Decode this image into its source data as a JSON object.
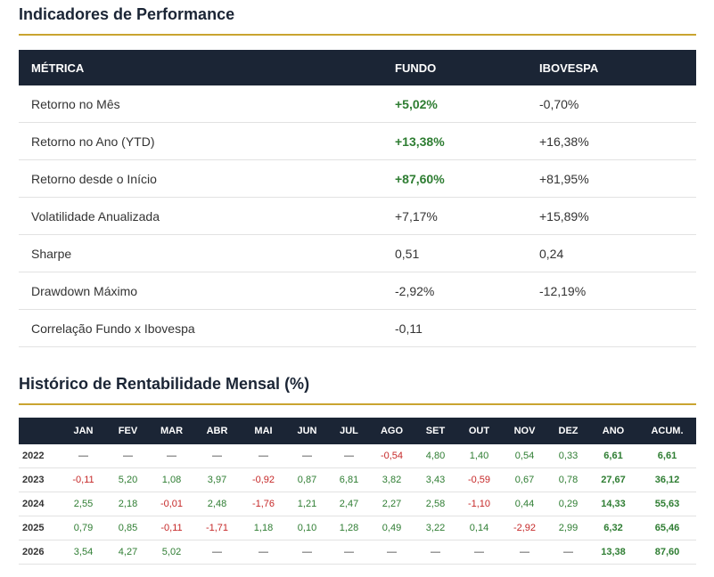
{
  "performance": {
    "title": "Indicadores de Performance",
    "headers": [
      "MÉTRICA",
      "FUNDO",
      "IBOVESPA"
    ],
    "rows": [
      {
        "metric": "Retorno no Mês",
        "fundo": "+5,02%",
        "ibovespa": "-0,70%"
      },
      {
        "metric": "Retorno no Ano (YTD)",
        "fundo": "+13,38%",
        "ibovespa": "+16,38%"
      },
      {
        "metric": "Retorno desde o Início",
        "fundo": "+87,60%",
        "ibovespa": "+81,95%"
      },
      {
        "metric": "Volatilidade Anualizada",
        "fundo": "+7,17%",
        "ibovespa": "+15,89%"
      },
      {
        "metric": "Sharpe",
        "fundo": "0,51",
        "ibovespa": "0,24"
      },
      {
        "metric": "Drawdown Máximo",
        "fundo": "-2,92%",
        "ibovespa": "-12,19%"
      },
      {
        "metric": "Correlação Fundo x Ibovespa",
        "fundo": "-0,11",
        "ibovespa": ""
      }
    ]
  },
  "monthly": {
    "title": "Histórico de Rentabilidade Mensal (%)",
    "headers": [
      "",
      "JAN",
      "FEV",
      "MAR",
      "ABR",
      "MAI",
      "JUN",
      "JUL",
      "AGO",
      "SET",
      "OUT",
      "NOV",
      "DEZ",
      "ANO",
      "ACUM."
    ],
    "rows": [
      {
        "year": "2022",
        "values": [
          "—",
          "—",
          "—",
          "—",
          "—",
          "—",
          "—",
          "-0,54",
          "4,80",
          "1,40",
          "0,54",
          "0,33",
          "6,61",
          "6,61"
        ]
      },
      {
        "year": "2023",
        "values": [
          "-0,11",
          "5,20",
          "1,08",
          "3,97",
          "-0,92",
          "0,87",
          "6,81",
          "3,82",
          "3,43",
          "-0,59",
          "0,67",
          "0,78",
          "27,67",
          "36,12"
        ]
      },
      {
        "year": "2024",
        "values": [
          "2,55",
          "2,18",
          "-0,01",
          "2,48",
          "-1,76",
          "1,21",
          "2,47",
          "2,27",
          "2,58",
          "-1,10",
          "0,44",
          "0,29",
          "14,33",
          "55,63"
        ]
      },
      {
        "year": "2025",
        "values": [
          "0,79",
          "0,85",
          "-0,11",
          "-1,71",
          "1,18",
          "0,10",
          "1,28",
          "0,49",
          "3,22",
          "0,14",
          "-2,92",
          "2,99",
          "6,32",
          "65,46"
        ]
      },
      {
        "year": "2026",
        "values": [
          "3,54",
          "4,27",
          "5,02",
          "—",
          "—",
          "—",
          "—",
          "—",
          "—",
          "—",
          "—",
          "—",
          "13,38",
          "87,60"
        ]
      }
    ]
  },
  "colors": {
    "header_bg": "#1b2535",
    "accent_gold": "#c9a430",
    "positive": "#2e7d32",
    "negative": "#c62828"
  }
}
